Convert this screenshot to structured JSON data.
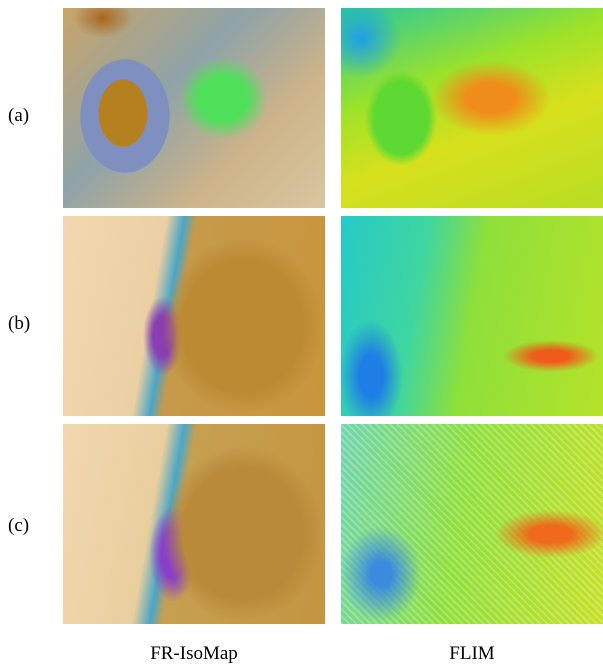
{
  "figure": {
    "rows": [
      {
        "label": "(a)"
      },
      {
        "label": "(b)"
      },
      {
        "label": "(c)"
      }
    ],
    "columns": [
      "FR-IsoMap",
      "FLIM"
    ]
  }
}
